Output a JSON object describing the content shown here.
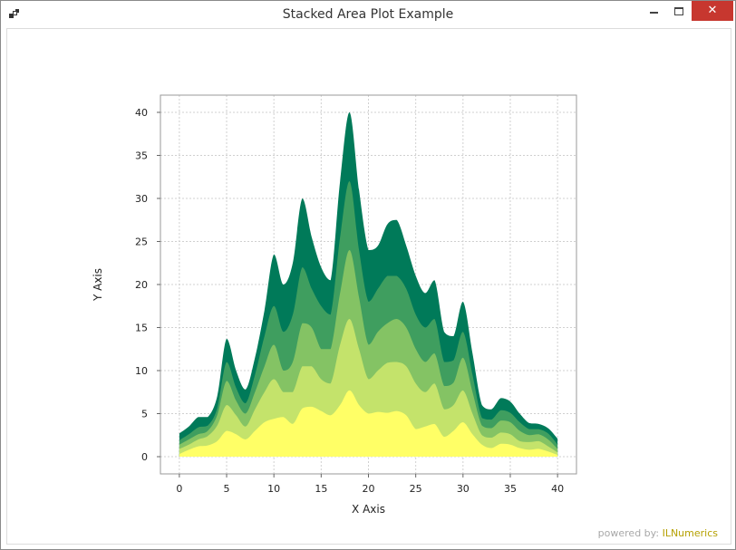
{
  "window": {
    "title": "Stacked Area Plot Example",
    "close_glyph": "✕",
    "icons": {
      "app": "app-icon",
      "minimize": "minimize-icon",
      "maximize": "maximize-icon",
      "close": "close-icon"
    }
  },
  "footer": {
    "prefix": "powered by:",
    "brand": "ILNumerics"
  },
  "chart_data": {
    "type": "area",
    "stacked": true,
    "xlabel": "X Axis",
    "ylabel": "Y Axis",
    "xlim": [
      -2,
      42
    ],
    "ylim": [
      -2,
      42
    ],
    "xticks": [
      0,
      5,
      10,
      15,
      20,
      25,
      30,
      35,
      40
    ],
    "yticks": [
      0,
      5,
      10,
      15,
      20,
      25,
      30,
      35,
      40
    ],
    "grid": true,
    "legend": "none",
    "x": [
      0,
      1,
      2,
      3,
      4,
      5,
      6,
      7,
      8,
      9,
      10,
      11,
      12,
      13,
      14,
      15,
      16,
      17,
      18,
      19,
      20,
      21,
      22,
      23,
      24,
      25,
      26,
      27,
      28,
      29,
      30,
      31,
      32,
      33,
      34,
      35,
      36,
      37,
      38,
      39,
      40
    ],
    "layer_totals": [
      [
        0.3,
        0.8,
        1.2,
        1.3,
        1.8,
        3.0,
        2.6,
        2.0,
        3.0,
        4.0,
        4.4,
        4.6,
        3.8,
        5.6,
        5.8,
        5.3,
        4.8,
        6.0,
        7.7,
        6.0,
        5.0,
        5.2,
        5.1,
        5.3,
        4.8,
        3.2,
        3.5,
        3.8,
        2.3,
        3.0,
        4.0,
        2.6,
        1.4,
        1.0,
        1.5,
        1.4,
        1.0,
        0.8,
        0.9,
        0.6,
        0.2
      ],
      [
        0.9,
        1.4,
        2.0,
        2.4,
        3.6,
        6.0,
        4.8,
        3.5,
        5.5,
        7.5,
        9.0,
        7.5,
        7.5,
        10.5,
        10.5,
        9.0,
        8.5,
        13.0,
        16.0,
        12.5,
        9.0,
        10.0,
        10.9,
        11.0,
        10.5,
        8.5,
        7.5,
        8.5,
        5.5,
        6.0,
        7.7,
        5.0,
        2.5,
        2.2,
        2.8,
        2.6,
        1.8,
        1.7,
        1.8,
        1.2,
        0.5
      ],
      [
        1.4,
        2.0,
        2.6,
        3.0,
        4.8,
        8.8,
        6.5,
        5.0,
        7.5,
        10.5,
        13.0,
        10.0,
        11.0,
        15.5,
        15.0,
        12.5,
        12.5,
        19.0,
        24.0,
        18.5,
        13.0,
        14.5,
        15.5,
        16.0,
        15.0,
        12.5,
        11.0,
        12.0,
        8.2,
        8.6,
        11.5,
        7.5,
        3.6,
        3.3,
        4.2,
        4.0,
        3.0,
        2.5,
        2.6,
        2.0,
        0.9
      ],
      [
        1.9,
        2.6,
        3.4,
        3.6,
        5.6,
        11.0,
        8.0,
        6.2,
        9.5,
        14.0,
        17.5,
        14.5,
        16.5,
        22.0,
        19.5,
        17.5,
        16.5,
        25.5,
        32.0,
        24.0,
        18.0,
        19.5,
        21.0,
        21.0,
        19.5,
        16.5,
        15.0,
        16.0,
        11.0,
        11.2,
        14.5,
        9.5,
        4.5,
        4.3,
        5.4,
        5.1,
        4.0,
        3.2,
        3.2,
        2.7,
        1.4
      ],
      [
        2.7,
        3.5,
        4.6,
        4.6,
        7.0,
        13.7,
        10.0,
        7.8,
        11.5,
        17.0,
        23.5,
        20.0,
        22.5,
        30.0,
        25.5,
        22.0,
        20.5,
        32.0,
        40.0,
        31.0,
        24.0,
        24.5,
        27.0,
        27.5,
        24.5,
        21.0,
        19.0,
        20.5,
        14.5,
        14.0,
        18.0,
        12.0,
        6.0,
        5.5,
        6.8,
        6.4,
        5.0,
        3.9,
        3.8,
        3.3,
        2.1
      ]
    ],
    "colors": [
      "#ffff66",
      "#c4e36b",
      "#84c364",
      "#3f9e5f",
      "#007a59"
    ]
  }
}
